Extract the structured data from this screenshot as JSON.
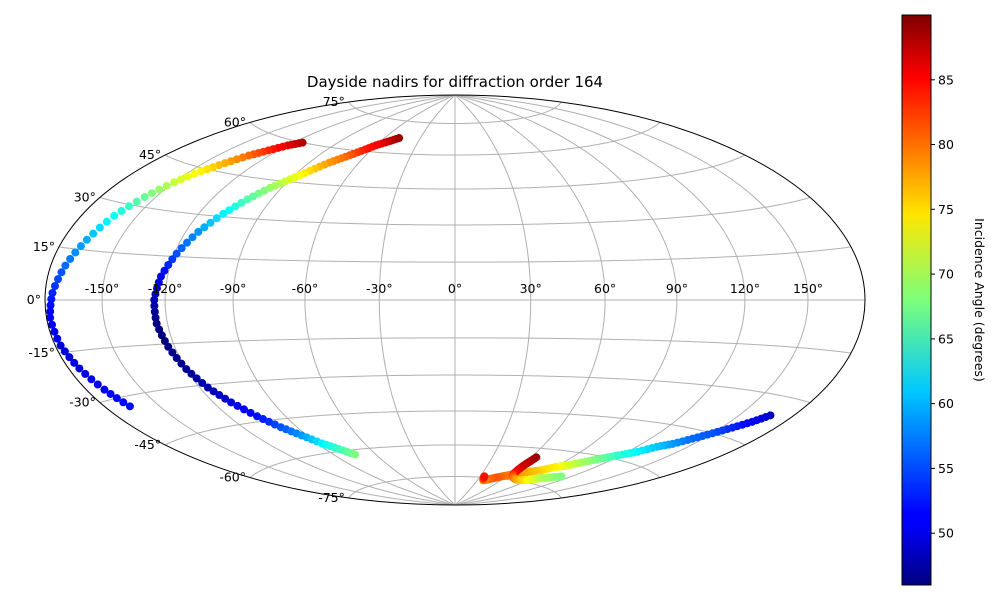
{
  "chart_data": {
    "type": "scatter",
    "projection": "hammer",
    "title": "Dayside nadirs for diffraction order 164",
    "colorbar": {
      "label": "Incidence Angle (degrees)",
      "colormap": "jet",
      "min": 46,
      "max": 90,
      "ticks": [
        "50",
        "55",
        "60",
        "65",
        "70",
        "75",
        "80",
        "85"
      ],
      "tick_values": [
        50,
        55,
        60,
        65,
        70,
        75,
        80,
        85
      ]
    },
    "x_tick_values": [
      -150,
      -120,
      -90,
      -60,
      -30,
      0,
      30,
      60,
      90,
      120,
      150
    ],
    "x_tick_labels": [
      "-150°",
      "-120°",
      "-90°",
      "-60°",
      "-30°",
      "0°",
      "30°",
      "60°",
      "90°",
      "120°",
      "150°"
    ],
    "y_tick_values": [
      75,
      60,
      45,
      30,
      15,
      0,
      -15,
      -30,
      -45,
      -60,
      -75
    ],
    "y_tick_labels": [
      "75°",
      "60°",
      "45°",
      "30°",
      "15°",
      "0°",
      "-15°",
      "-30°",
      "-45°",
      "-60°",
      "-75°"
    ],
    "grid": true,
    "series": [
      {
        "points": [
          [
            -114,
            60,
            88
          ],
          [
            -120,
            58,
            86
          ],
          [
            -126,
            55,
            83
          ],
          [
            -132,
            52,
            80
          ],
          [
            -138,
            48,
            77
          ],
          [
            -144,
            44,
            74
          ],
          [
            -150,
            39,
            71
          ],
          [
            -156,
            33,
            67
          ],
          [
            -162,
            26,
            63
          ],
          [
            -167,
            18,
            59
          ],
          [
            -172,
            10,
            56
          ],
          [
            -176,
            2,
            53
          ],
          [
            -178,
            -5,
            51
          ],
          [
            -177,
            -13,
            50
          ],
          [
            -174,
            -20,
            50
          ],
          [
            -170,
            -27,
            51
          ],
          [
            -166,
            -33,
            52
          ]
        ]
      },
      {
        "points": [
          [
            -48,
            67,
            89
          ],
          [
            -54,
            65,
            87
          ],
          [
            -60,
            63,
            85
          ],
          [
            -66,
            60,
            83
          ],
          [
            -72,
            57,
            80
          ],
          [
            -78,
            54,
            78
          ],
          [
            -84,
            50,
            75
          ],
          [
            -90,
            46,
            72
          ],
          [
            -96,
            42,
            69
          ],
          [
            -102,
            37,
            66
          ],
          [
            -108,
            31,
            62
          ],
          [
            -114,
            24,
            58
          ],
          [
            -119,
            16,
            55
          ],
          [
            -123,
            8,
            51
          ],
          [
            -125,
            0,
            48
          ],
          [
            -125,
            -8,
            46
          ],
          [
            -123,
            -16,
            46
          ],
          [
            -120,
            -24,
            47
          ],
          [
            -116,
            -31,
            48
          ],
          [
            -111,
            -37,
            50
          ],
          [
            -105,
            -43,
            52
          ],
          [
            -99,
            -48,
            55
          ],
          [
            -93,
            -52,
            58
          ],
          [
            -87,
            -56,
            62
          ],
          [
            -81,
            -59,
            65
          ],
          [
            -75,
            -62,
            68
          ]
        ]
      },
      {
        "points": [
          [
            167,
            -36,
            49
          ],
          [
            162,
            -39,
            51
          ],
          [
            156,
            -42,
            53
          ],
          [
            150,
            -45,
            55
          ],
          [
            144,
            -48,
            56
          ],
          [
            138,
            -51,
            58
          ],
          [
            132,
            -53,
            60
          ],
          [
            126,
            -56,
            62
          ],
          [
            120,
            -58,
            64
          ],
          [
            114,
            -60,
            66
          ],
          [
            108,
            -62,
            68
          ],
          [
            102,
            -64,
            70
          ],
          [
            96,
            -66,
            72
          ],
          [
            90,
            -67,
            74
          ],
          [
            84,
            -69,
            75
          ],
          [
            78,
            -70,
            76
          ],
          [
            72,
            -71,
            77
          ],
          [
            66,
            -72,
            78
          ],
          [
            60,
            -73,
            79
          ],
          [
            54,
            -74,
            80
          ],
          [
            48,
            -75,
            81
          ],
          [
            42,
            -76,
            80
          ],
          [
            38,
            -76.5,
            78
          ],
          [
            36,
            -75.5,
            82
          ],
          [
            35,
            -74.5,
            84
          ]
        ]
      },
      {
        "points": [
          [
            64,
            -64,
            89
          ],
          [
            63,
            -66,
            88
          ],
          [
            62,
            -68,
            87
          ],
          [
            62,
            -70,
            86
          ],
          [
            63,
            -72,
            84
          ],
          [
            65,
            -73,
            82
          ],
          [
            70,
            -74,
            80
          ],
          [
            76,
            -74.5,
            78
          ],
          [
            82,
            -74.5,
            76
          ],
          [
            88,
            -74,
            74
          ],
          [
            94,
            -73,
            72
          ],
          [
            100,
            -72,
            70
          ],
          [
            106,
            -71,
            69
          ],
          [
            112,
            -70,
            68
          ]
        ]
      }
    ]
  }
}
